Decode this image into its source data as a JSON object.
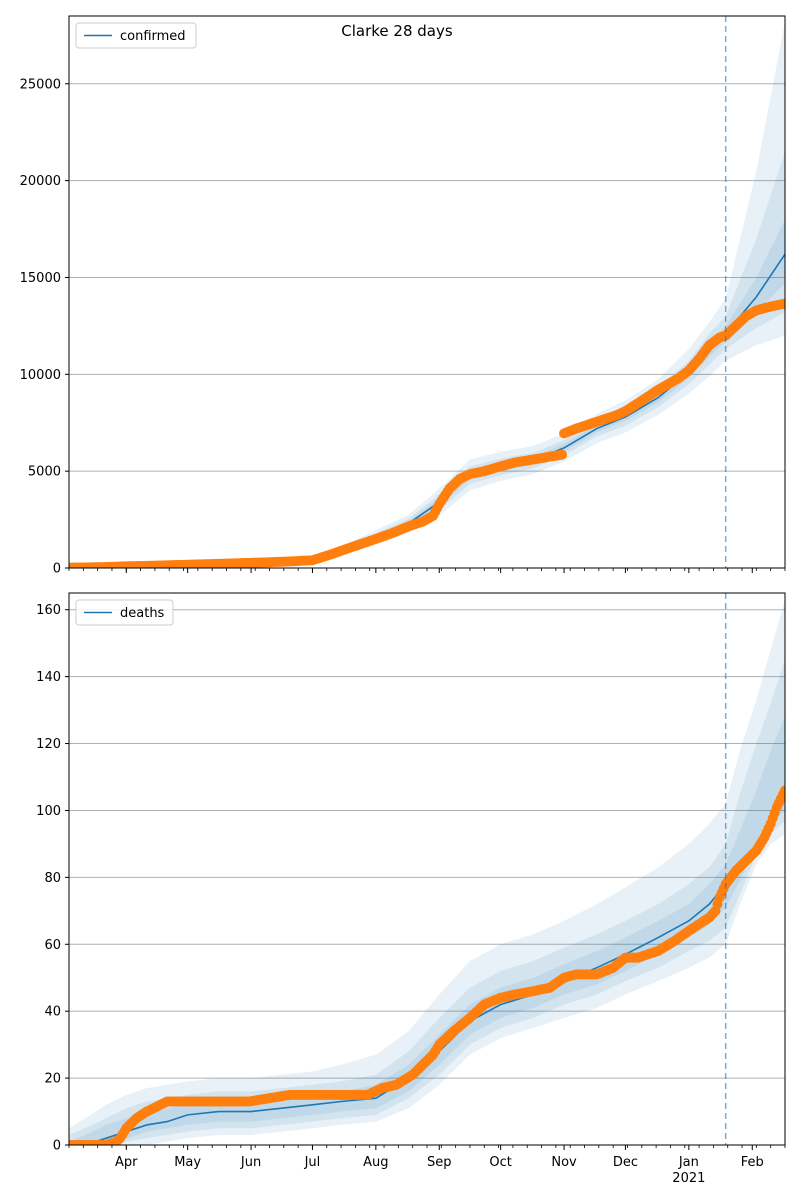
{
  "figure": {
    "title": "Clarke 28 days"
  },
  "colors": {
    "model_line": "#1f77b4",
    "observed": "#ff7f0e",
    "band": "#1f77b4",
    "grid": "#b0b0b0",
    "vline": "#1f77b4"
  },
  "x_axis": {
    "month_labels": [
      "Apr",
      "May",
      "Jun",
      "Jul",
      "Aug",
      "Sep",
      "Oct",
      "Nov",
      "Dec",
      "Jan",
      "Feb"
    ],
    "month_days": [
      0,
      30,
      61,
      91,
      122,
      153,
      183,
      214,
      244,
      275,
      306
    ],
    "year_label": "2021",
    "year_under_index": 9,
    "xlim_days": [
      -28,
      322
    ],
    "forecast_start_day": 293
  },
  "chart_data": [
    {
      "type": "line",
      "title": "Clarke 28 days",
      "legend": "confirmed",
      "legend_position": "upper left",
      "grid": "y",
      "ylim": [
        0,
        28500
      ],
      "yticks": [
        0,
        5000,
        10000,
        15000,
        20000,
        25000
      ],
      "ytick_labels": [
        "0",
        "5000",
        "10000",
        "15000",
        "20000",
        "25000"
      ],
      "model": {
        "name": "confirmed",
        "days": [
          -28,
          -20,
          0,
          30,
          61,
          76,
          91,
          108,
          122,
          138,
          153,
          168,
          183,
          199,
          214,
          230,
          244,
          260,
          275,
          285,
          293,
          308,
          322
        ],
        "values": [
          20,
          40,
          100,
          160,
          240,
          300,
          420,
          950,
          1600,
          2300,
          3400,
          4800,
          5200,
          5550,
          6200,
          7200,
          7800,
          8800,
          10100,
          11300,
          12100,
          14000,
          16200
        ]
      },
      "bands": [
        {
          "level": "outer",
          "lower": [
            0,
            0,
            20,
            60,
            120,
            170,
            270,
            700,
            1250,
            1850,
            2700,
            4000,
            4500,
            4850,
            5500,
            6450,
            7000,
            7900,
            9000,
            9900,
            10700,
            11500,
            12000
          ],
          "upper": [
            60,
            90,
            180,
            280,
            380,
            470,
            620,
            1250,
            1950,
            2750,
            4100,
            5600,
            6000,
            6300,
            6950,
            7950,
            8650,
            9750,
            11300,
            12700,
            13900,
            20500,
            28200
          ]
        },
        {
          "level": "middle",
          "lower": [
            5,
            15,
            50,
            100,
            170,
            230,
            340,
            820,
            1420,
            2050,
            3000,
            4350,
            4800,
            5150,
            5800,
            6800,
            7350,
            8300,
            9500,
            10500,
            11300,
            12400,
            13200
          ],
          "upper": [
            40,
            65,
            150,
            230,
            320,
            390,
            520,
            1100,
            1800,
            2550,
            3800,
            5250,
            5650,
            5950,
            6600,
            7600,
            8250,
            9300,
            10700,
            12100,
            13000,
            17000,
            21500
          ]
        },
        {
          "level": "inner",
          "lower": [
            10,
            25,
            75,
            130,
            205,
            265,
            380,
            890,
            1520,
            2180,
            3200,
            4600,
            5000,
            5350,
            6000,
            7000,
            7600,
            8550,
            9800,
            10900,
            11700,
            13200,
            14700
          ],
          "upper": [
            30,
            55,
            125,
            190,
            275,
            335,
            460,
            1010,
            1680,
            2420,
            3600,
            5000,
            5400,
            5750,
            6400,
            7400,
            8000,
            9050,
            10400,
            11700,
            12500,
            15000,
            18000
          ]
        }
      ],
      "observed": {
        "days": [
          -28,
          -20,
          -10,
          0,
          10,
          20,
          30,
          40,
          50,
          61,
          70,
          80,
          91,
          100,
          108,
          115,
          122,
          130,
          138,
          145,
          150,
          153,
          158,
          163,
          168,
          175,
          183,
          190,
          199,
          207,
          213,
          214,
          220,
          230,
          240,
          244,
          250,
          260,
          270,
          275,
          280,
          285,
          290,
          293,
          298,
          303,
          308,
          315,
          322
        ],
        "values": [
          20,
          30,
          50,
          90,
          110,
          140,
          170,
          200,
          230,
          270,
          300,
          340,
          400,
          700,
          1000,
          1250,
          1500,
          1800,
          2150,
          2400,
          2700,
          3300,
          4100,
          4600,
          4850,
          5000,
          5250,
          5450,
          5600,
          5750,
          5850,
          6950,
          7200,
          7550,
          7900,
          8100,
          8500,
          9200,
          9800,
          10200,
          10800,
          11500,
          11900,
          12000,
          12500,
          13000,
          13300,
          13500,
          13650
        ]
      }
    },
    {
      "type": "line",
      "legend": "deaths",
      "legend_position": "upper left",
      "grid": "y",
      "ylim": [
        0,
        165
      ],
      "yticks": [
        0,
        20,
        40,
        60,
        80,
        100,
        120,
        140,
        160
      ],
      "ytick_labels": [
        "0",
        "20",
        "40",
        "60",
        "80",
        "100",
        "120",
        "140",
        "160"
      ],
      "model": {
        "name": "deaths",
        "days": [
          -28,
          -20,
          -10,
          0,
          10,
          20,
          30,
          45,
          61,
          76,
          91,
          105,
          122,
          138,
          153,
          168,
          183,
          199,
          214,
          230,
          244,
          260,
          275,
          285,
          293,
          300,
          308,
          315,
          322
        ],
        "values": [
          0,
          0,
          2,
          4,
          6,
          7,
          9,
          10,
          10,
          11,
          12,
          13,
          14,
          20,
          28,
          37,
          42,
          45,
          49,
          53,
          57,
          62,
          67,
          72,
          78,
          83,
          90,
          97,
          105
        ]
      },
      "bands": [
        {
          "level": "outer",
          "lower": [
            0,
            0,
            0,
            0,
            0,
            1,
            2,
            3,
            3,
            4,
            5,
            6,
            7,
            11,
            18,
            27,
            32,
            35,
            38,
            41,
            45,
            49,
            53,
            56,
            60,
            72,
            84,
            90,
            93
          ],
          "upper": [
            5,
            8,
            12,
            15,
            17,
            18,
            19,
            20,
            20,
            21,
            22,
            24,
            27,
            34,
            45,
            55,
            60,
            63,
            67,
            72,
            77,
            83,
            90,
            96,
            102,
            118,
            133,
            148,
            163
          ]
        },
        {
          "level": "middle",
          "lower": [
            0,
            0,
            0,
            1,
            2,
            3,
            4,
            5,
            5,
            6,
            7,
            8,
            9,
            14,
            21,
            30,
            35,
            38,
            42,
            45,
            49,
            53,
            58,
            61,
            65,
            75,
            87,
            93,
            97
          ],
          "upper": [
            3,
            5,
            8,
            11,
            13,
            14,
            15,
            16,
            16,
            17,
            18,
            19,
            21,
            28,
            38,
            47,
            52,
            55,
            59,
            63,
            67,
            72,
            78,
            83,
            90,
            105,
            120,
            132,
            145
          ]
        },
        {
          "level": "inner",
          "lower": [
            0,
            0,
            1,
            2,
            4,
            5,
            6,
            7,
            7,
            8,
            9,
            10,
            11,
            16,
            24,
            33,
            38,
            41,
            45,
            48,
            52,
            57,
            62,
            66,
            71,
            79,
            89,
            96,
            100
          ],
          "upper": [
            1,
            3,
            6,
            8,
            10,
            11,
            12,
            13,
            13,
            14,
            15,
            16,
            18,
            24,
            33,
            42,
            47,
            50,
            54,
            58,
            62,
            67,
            72,
            78,
            84,
            94,
            106,
            118,
            128
          ]
        }
      ],
      "observed": {
        "days": [
          -28,
          -20,
          -10,
          -5,
          -3,
          0,
          5,
          10,
          20,
          40,
          60,
          80,
          100,
          110,
          118,
          125,
          132,
          140,
          145,
          150,
          153,
          160,
          168,
          175,
          183,
          190,
          199,
          207,
          214,
          220,
          230,
          238,
          244,
          250,
          260,
          268,
          275,
          280,
          285,
          288,
          290,
          293,
          298,
          303,
          308,
          312,
          315,
          318,
          322
        ],
        "values": [
          0,
          0,
          0,
          1,
          2,
          5,
          8,
          10,
          13,
          13,
          13,
          15,
          15,
          15,
          15,
          17,
          18,
          21,
          24,
          27,
          30,
          34,
          38,
          42,
          44,
          45,
          46,
          47,
          50,
          51,
          51,
          53,
          56,
          56,
          58,
          61,
          64,
          66,
          68,
          70,
          74,
          78,
          82,
          85,
          88,
          92,
          96,
          101,
          106
        ]
      }
    }
  ]
}
